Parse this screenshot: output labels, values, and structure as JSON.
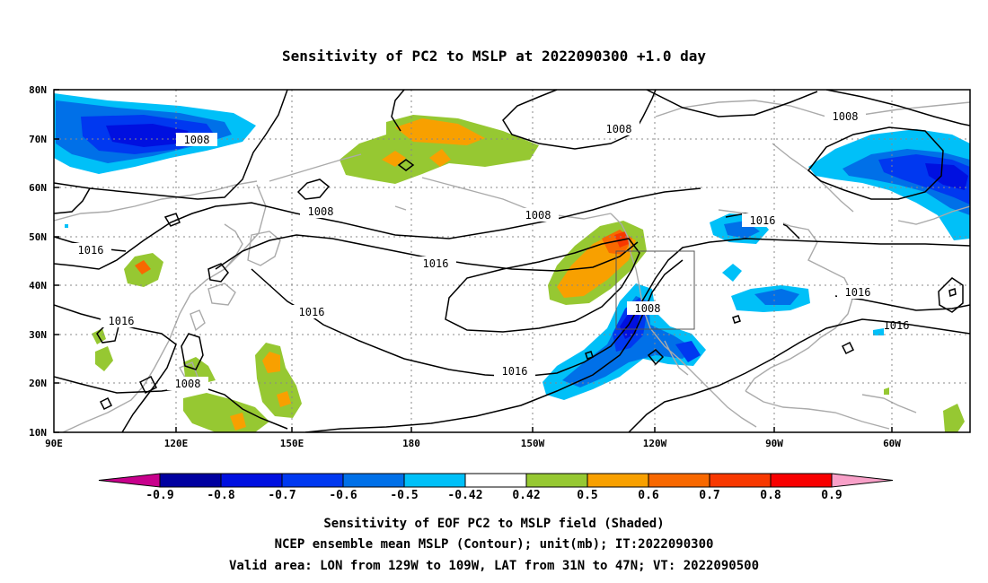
{
  "title": "Sensitivity of PC2 to MSLP at 2022090300 +1.0 day",
  "map": {
    "lat_labels": [
      "80N",
      "70N",
      "60N",
      "50N",
      "40N",
      "30N",
      "20N",
      "10N"
    ],
    "lon_labels": [
      "90E",
      "120E",
      "150E",
      "180",
      "150W",
      "120W",
      "90W",
      "60W"
    ],
    "contour_labels": [
      "1008",
      "1008",
      "1008",
      "1008",
      "1008",
      "1016",
      "1016",
      "1016",
      "1016",
      "1016",
      "1016",
      "1016",
      "1008",
      "1008"
    ],
    "colors": {
      "n09": "#0000a0",
      "n08": "#0010e0",
      "n07": "#0038f0",
      "n06": "#0070e8",
      "n05": "#00c0f8",
      "p05": "#96c832",
      "p06": "#f8a000",
      "p07": "#f86800",
      "p08": "#f83800",
      "p09": "#f80000",
      "coast": "#aaaaaa"
    }
  },
  "colorbar": {
    "ticks": [
      "-0.9",
      "-0.8",
      "-0.7",
      "-0.6",
      "-0.5",
      "-0.42",
      "0.42",
      "0.5",
      "0.6",
      "0.7",
      "0.8",
      "0.9"
    ],
    "colors": [
      "#c8008c",
      "#0000a0",
      "#0010e0",
      "#0038f0",
      "#0070e8",
      "#00c0f8",
      "#ffffff",
      "#96c832",
      "#f8a000",
      "#f86800",
      "#f83800",
      "#f80000",
      "#f8a0c8"
    ]
  },
  "caption": {
    "line1": "Sensitivity of EOF PC2 to MSLP field (Shaded)",
    "line2": "NCEP ensemble mean MSLP (Contour); unit(mb); IT:2022090300",
    "line3": "Valid area: LON from 129W to 109W, LAT from 31N to 47N; VT: 2022090500"
  }
}
